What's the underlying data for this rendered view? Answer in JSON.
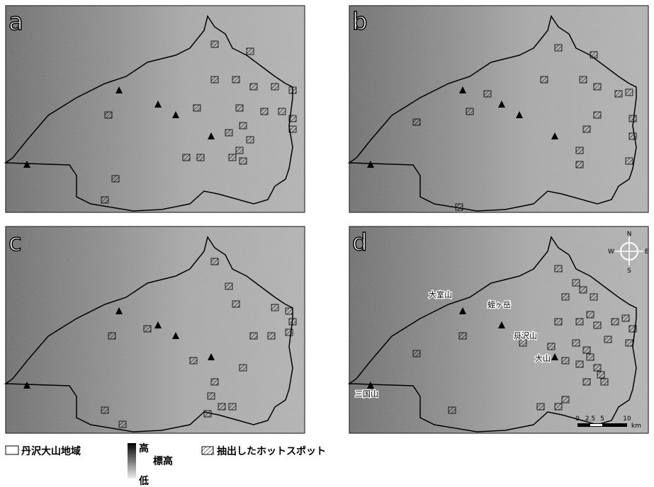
{
  "panels": [
    {
      "label": "a"
    },
    {
      "label": "b"
    },
    {
      "label": "c"
    },
    {
      "label": "d",
      "place_names": [
        "大室山",
        "蛭ヶ岳",
        "丹沢山",
        "大山",
        "三国山"
      ],
      "scale_bar": {
        "ticks": [
          "0",
          "2.5",
          "5",
          "10"
        ],
        "unit": "km"
      },
      "compass": {
        "n": "N",
        "s": "S",
        "e": "E",
        "w": "W"
      }
    }
  ],
  "legend": {
    "region": "丹沢大山地域",
    "elevation_high": "高",
    "elevation_title": "標高",
    "elevation_low": "低",
    "hotspot": "抽出したホットスポット"
  }
}
